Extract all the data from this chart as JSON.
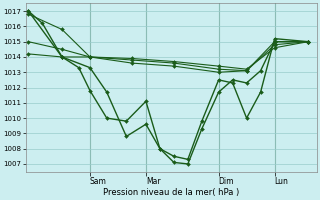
{
  "background_color": "#cceef0",
  "grid_color": "#99cccc",
  "line_color": "#1a5c1a",
  "marker_color": "#1a5c1a",
  "xlabel": "Pression niveau de la mer( hPa )",
  "ylim": [
    1006.5,
    1017.5
  ],
  "yticks": [
    1007,
    1008,
    1009,
    1010,
    1011,
    1012,
    1013,
    1014,
    1015,
    1016,
    1017
  ],
  "xtick_labels": [
    "Sam",
    "Mar",
    "Dim",
    "Lun"
  ],
  "xtick_positions": [
    0.22,
    0.42,
    0.68,
    0.88
  ],
  "series": [
    {
      "x": [
        0.0,
        0.12,
        0.22,
        0.37,
        0.52,
        0.68,
        0.78,
        0.88,
        1.0
      ],
      "y": [
        1016.8,
        1015.8,
        1014.0,
        1013.6,
        1013.4,
        1013.0,
        1013.1,
        1015.0,
        1015.0
      ]
    },
    {
      "x": [
        0.0,
        0.12,
        0.22,
        0.37,
        0.52,
        0.68,
        0.78,
        0.88,
        1.0
      ],
      "y": [
        1015.0,
        1014.5,
        1014.0,
        1013.8,
        1013.6,
        1013.2,
        1013.1,
        1014.8,
        1015.0
      ]
    },
    {
      "x": [
        0.0,
        0.12,
        0.22,
        0.37,
        0.52,
        0.68,
        0.78,
        0.88,
        1.0
      ],
      "y": [
        1014.2,
        1014.0,
        1014.0,
        1013.9,
        1013.7,
        1013.4,
        1013.2,
        1014.6,
        1015.0
      ]
    },
    {
      "x": [
        0.0,
        0.05,
        0.12,
        0.18,
        0.22,
        0.28,
        0.35,
        0.42,
        0.47,
        0.52,
        0.57,
        0.62,
        0.68,
        0.73,
        0.78,
        0.83,
        0.88,
        1.0
      ],
      "y": [
        1017.0,
        1016.2,
        1014.0,
        1013.3,
        1011.8,
        1010.0,
        1009.8,
        1011.1,
        1008.0,
        1007.1,
        1007.0,
        1009.3,
        1011.7,
        1012.5,
        1012.3,
        1013.1,
        1015.0,
        1015.0
      ]
    },
    {
      "x": [
        0.0,
        0.12,
        0.22,
        0.28,
        0.35,
        0.42,
        0.47,
        0.52,
        0.57,
        0.62,
        0.68,
        0.73,
        0.78,
        0.83,
        0.88,
        1.0
      ],
      "y": [
        1017.0,
        1014.0,
        1013.3,
        1011.7,
        1008.8,
        1009.6,
        1008.0,
        1007.5,
        1007.3,
        1009.8,
        1012.5,
        1012.3,
        1010.0,
        1011.7,
        1015.2,
        1015.0
      ]
    }
  ],
  "vlines_x": [
    0.22,
    0.42,
    0.68,
    0.88
  ],
  "figsize": [
    3.2,
    2.0
  ],
  "dpi": 100
}
